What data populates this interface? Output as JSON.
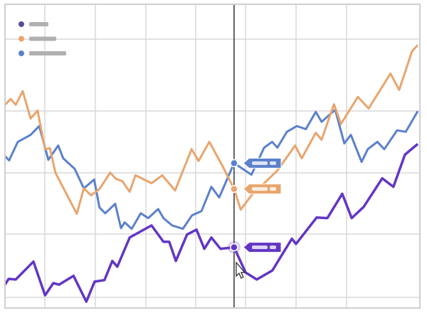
{
  "chart_data": {
    "type": "line",
    "title": "",
    "xlabel": "",
    "ylabel": "",
    "xlim": [
      0,
      10
    ],
    "ylim": [
      0,
      10
    ],
    "grid": true,
    "legend_position": "top-left",
    "hover_x": 5.55,
    "series": [
      {
        "color": "#6236c4",
        "legend_color": "#5a4a9c",
        "points": [
          [
            0,
            0.77
          ],
          [
            0.09,
            0.96
          ],
          [
            0.26,
            0.94
          ],
          [
            0.69,
            1.53
          ],
          [
            0.97,
            0.42
          ],
          [
            1.17,
            0.82
          ],
          [
            1.31,
            0.77
          ],
          [
            1.66,
            1.06
          ],
          [
            1.97,
            0.21
          ],
          [
            2.17,
            0.87
          ],
          [
            2.41,
            0.92
          ],
          [
            2.6,
            1.55
          ],
          [
            2.72,
            1.36
          ],
          [
            3.02,
            2.32
          ],
          [
            3.55,
            2.72
          ],
          [
            3.84,
            2.18
          ],
          [
            3.98,
            2.18
          ],
          [
            4.14,
            1.55
          ],
          [
            4.41,
            2.42
          ],
          [
            4.64,
            2.58
          ],
          [
            4.83,
            1.95
          ],
          [
            5.0,
            2.32
          ],
          [
            5.22,
            1.95
          ],
          [
            5.55,
            2.0
          ],
          [
            5.83,
            1.17
          ],
          [
            6.1,
            0.94
          ],
          [
            6.48,
            1.24
          ],
          [
            6.95,
            2.28
          ],
          [
            7.05,
            2.11
          ],
          [
            7.55,
            2.98
          ],
          [
            7.81,
            2.96
          ],
          [
            8.17,
            3.76
          ],
          [
            8.4,
            2.96
          ],
          [
            8.69,
            3.33
          ],
          [
            9.14,
            4.27
          ],
          [
            9.41,
            3.99
          ],
          [
            9.69,
            5.05
          ],
          [
            10.0,
            5.4
          ]
        ],
        "hover_value": 2.0
      },
      {
        "color": "#e8a56e",
        "legend_color": "#e8a56e",
        "points": [
          [
            0,
            6.69
          ],
          [
            0.14,
            6.88
          ],
          [
            0.26,
            6.69
          ],
          [
            0.43,
            7.14
          ],
          [
            0.62,
            6.24
          ],
          [
            0.79,
            6.5
          ],
          [
            0.97,
            5.23
          ],
          [
            1.09,
            5.26
          ],
          [
            1.22,
            4.46
          ],
          [
            1.74,
            3.1
          ],
          [
            1.91,
            3.94
          ],
          [
            2.09,
            3.71
          ],
          [
            2.29,
            3.92
          ],
          [
            2.55,
            4.46
          ],
          [
            2.69,
            4.25
          ],
          [
            2.84,
            4.18
          ],
          [
            3.02,
            3.83
          ],
          [
            3.16,
            4.37
          ],
          [
            3.55,
            4.11
          ],
          [
            3.81,
            4.37
          ],
          [
            4.12,
            3.87
          ],
          [
            4.52,
            5.23
          ],
          [
            4.69,
            4.84
          ],
          [
            4.95,
            5.47
          ],
          [
            5.28,
            4.65
          ],
          [
            5.55,
            3.92
          ],
          [
            5.71,
            3.24
          ],
          [
            5.97,
            3.71
          ],
          [
            6.48,
            4.37
          ],
          [
            6.6,
            4.53
          ],
          [
            7.03,
            5.35
          ],
          [
            7.19,
            4.93
          ],
          [
            7.53,
            5.77
          ],
          [
            7.67,
            5.54
          ],
          [
            7.97,
            6.71
          ],
          [
            8.14,
            6.06
          ],
          [
            8.55,
            6.95
          ],
          [
            8.81,
            6.57
          ],
          [
            9.34,
            7.72
          ],
          [
            9.55,
            7.18
          ],
          [
            9.86,
            8.45
          ],
          [
            10.0,
            8.66
          ]
        ],
        "hover_value": 3.92
      },
      {
        "color": "#5b80cc",
        "legend_color": "#5b80cc",
        "points": [
          [
            0,
            5.0
          ],
          [
            0.1,
            4.86
          ],
          [
            0.31,
            5.47
          ],
          [
            0.62,
            5.7
          ],
          [
            0.83,
            5.99
          ],
          [
            1.05,
            4.88
          ],
          [
            1.29,
            5.35
          ],
          [
            1.41,
            4.93
          ],
          [
            1.69,
            4.58
          ],
          [
            1.91,
            3.94
          ],
          [
            2.16,
            4.23
          ],
          [
            2.29,
            3.31
          ],
          [
            2.43,
            3.12
          ],
          [
            2.67,
            3.43
          ],
          [
            2.81,
            2.63
          ],
          [
            2.9,
            2.82
          ],
          [
            3.07,
            2.61
          ],
          [
            3.29,
            3.12
          ],
          [
            3.47,
            2.96
          ],
          [
            3.71,
            3.26
          ],
          [
            3.84,
            2.96
          ],
          [
            4.05,
            2.72
          ],
          [
            4.31,
            2.61
          ],
          [
            4.53,
            3.05
          ],
          [
            4.76,
            3.19
          ],
          [
            5.0,
            3.99
          ],
          [
            5.19,
            3.64
          ],
          [
            5.55,
            4.77
          ],
          [
            5.74,
            4.6
          ],
          [
            5.97,
            4.39
          ],
          [
            6.28,
            5.28
          ],
          [
            6.47,
            5.47
          ],
          [
            6.6,
            5.28
          ],
          [
            6.83,
            5.8
          ],
          [
            7.07,
            5.99
          ],
          [
            7.29,
            5.89
          ],
          [
            7.53,
            6.46
          ],
          [
            7.67,
            6.13
          ],
          [
            8.0,
            6.53
          ],
          [
            8.22,
            5.42
          ],
          [
            8.38,
            5.7
          ],
          [
            8.64,
            4.81
          ],
          [
            8.79,
            5.23
          ],
          [
            9.02,
            5.47
          ],
          [
            9.19,
            5.23
          ],
          [
            9.5,
            5.85
          ],
          [
            9.71,
            5.8
          ],
          [
            10.0,
            6.48
          ]
        ],
        "hover_value": 4.77
      }
    ]
  }
}
